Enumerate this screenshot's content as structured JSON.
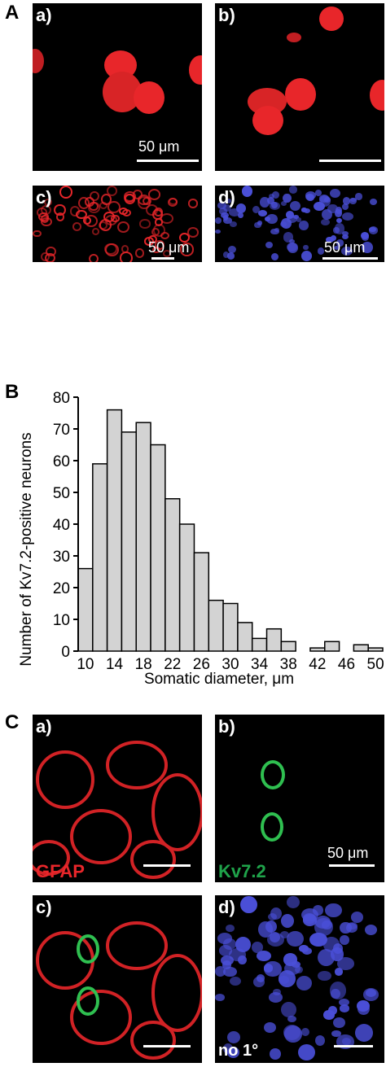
{
  "figure": {
    "panel_A": {
      "letter": "A",
      "sub": [
        {
          "label": "a)",
          "scale_text": "50 μm"
        },
        {
          "label": "b)",
          "scale_text": ""
        },
        {
          "label": "c)",
          "scale_text": "50 μm"
        },
        {
          "label": "d)",
          "scale_text": "50 μm"
        }
      ]
    },
    "panel_B": {
      "letter": "B"
    },
    "panel_C": {
      "letter": "C",
      "sub": [
        {
          "label": "a)",
          "stain_text": "GFAP",
          "stain_color": "#e8262a"
        },
        {
          "label": "b)",
          "stain_text": "Kv7.2",
          "stain_color": "#1fa34a",
          "scale_text": "50 μm"
        },
        {
          "label": "c)"
        },
        {
          "label": "d)",
          "caption": "no 1°"
        }
      ]
    },
    "colors": {
      "red": "#e8262a",
      "green": "#2fbf50",
      "blue": "#4a4fd8",
      "bar_fill": "#d3d3d3"
    }
  },
  "chart_data": {
    "type": "bar",
    "xlabel": "Somatic diameter, μm",
    "ylabel": "Number of Kv7.2-positive neurons",
    "ylim": [
      0,
      80
    ],
    "yticks": [
      0,
      10,
      20,
      30,
      40,
      50,
      60,
      70,
      80
    ],
    "xticks": [
      10,
      14,
      18,
      22,
      26,
      30,
      34,
      38,
      42,
      46,
      50
    ],
    "x": [
      10,
      12,
      14,
      16,
      18,
      20,
      22,
      24,
      26,
      28,
      30,
      32,
      34,
      36,
      38,
      40,
      42,
      44,
      46,
      48,
      50
    ],
    "values": [
      26,
      59,
      76,
      69,
      72,
      65,
      48,
      40,
      31,
      16,
      15,
      9,
      4,
      7,
      3,
      0,
      1,
      3,
      0,
      2,
      1
    ]
  }
}
